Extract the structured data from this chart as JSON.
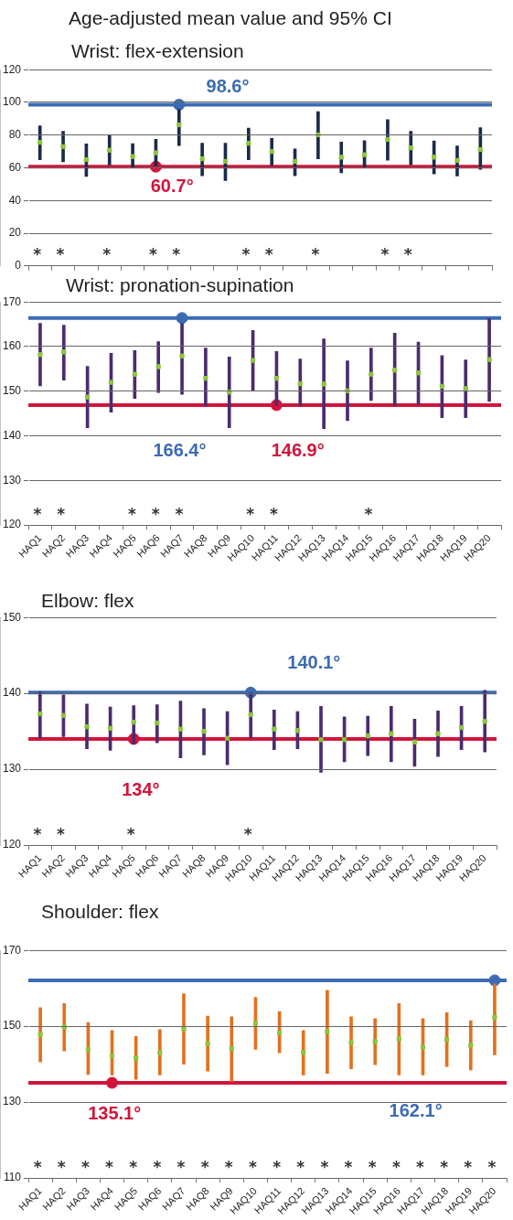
{
  "chart_data": [
    {
      "type": "bar",
      "title": "Age-adjusted mean value and 95% CI",
      "subtitle": "Wrist: flex-extension",
      "categories": [
        "HAQ1",
        "HAQ2",
        "HAQ3",
        "HAQ4",
        "HAQ5",
        "HAQ6",
        "HAQ7",
        "HAQ8",
        "HAQ9",
        "HAQ10",
        "HAQ11",
        "HAQ12",
        "HAQ13",
        "HAQ14",
        "HAQ15",
        "HAQ16",
        "HAQ17",
        "HAQ18",
        "HAQ19",
        "HAQ20"
      ],
      "series": [
        {
          "color": "#1c2a4a",
          "base": [
            65,
            63.7,
            54.8,
            61.7,
            60.1,
            61,
            73.6,
            55.2,
            52.2,
            65,
            61.5,
            55.2,
            65.5,
            57,
            60.1,
            64.7,
            61.9,
            56.3,
            55,
            59
          ],
          "values": [
            20.7,
            18.6,
            19.8,
            18.1,
            14.7,
            16.4,
            22.2,
            19.8,
            22.8,
            19.3,
            16.5,
            16.4,
            28.9,
            18.8,
            16.5,
            24.8,
            20.4,
            20.1,
            18.4,
            25.5
          ]
        },
        {
          "type": "scatter",
          "marker": "square",
          "color": "#8cc63e",
          "values": [
            75.6,
            73,
            65,
            70.8,
            66.9,
            69.2,
            86.3,
            65.5,
            64,
            75,
            70,
            64,
            80.2,
            66.5,
            68,
            77.4,
            72.2,
            66.5,
            64.5,
            71.2
          ]
        },
        {
          "type": "scatter",
          "marker": "circle",
          "color": "#3c6bb4",
          "x": [
            "HAQ7"
          ],
          "values": [
            98.6
          ]
        },
        {
          "type": "scatter",
          "marker": "circle",
          "color": "#d2143a",
          "x": [
            "HAQ6"
          ],
          "values": [
            60.7
          ]
        }
      ],
      "ylim": [
        0,
        120
      ],
      "yticks": [
        0,
        20,
        40,
        60,
        80,
        100,
        120
      ],
      "grid": "y",
      "tick_labels": "y",
      "ref_lines": [
        {
          "axis": "y",
          "value": 98.6,
          "label": "98.6°",
          "color": "#3c6bb4"
        },
        {
          "axis": "y",
          "value": 60.7,
          "label": "60.7°",
          "color": "#d2143a"
        }
      ],
      "annotations": [
        "*",
        "*",
        "*",
        "*",
        "*",
        "*",
        "*",
        "*",
        "*",
        "*"
      ]
    },
    {
      "type": "bar",
      "title": "Wrist: pronation-supination",
      "categories": [
        "HAQ1",
        "HAQ2",
        "HAQ3",
        "HAQ4",
        "HAQ5",
        "HAQ6",
        "HAQ7",
        "HAQ8",
        "HAQ9",
        "HAQ10",
        "HAQ11",
        "HAQ12",
        "HAQ13",
        "HAQ14",
        "HAQ15",
        "HAQ16",
        "HAQ17",
        "HAQ18",
        "HAQ19",
        "HAQ20"
      ],
      "series": [
        {
          "color": "#4a2c6e",
          "base": [
            151.2,
            152.5,
            141.8,
            145.3,
            148.4,
            149.7,
            149.3,
            146.8,
            141.8,
            150,
            146.8,
            146.8,
            141.6,
            143.4,
            147.9,
            146.8,
            147,
            144.1,
            144.1,
            147.7
          ],
          "values": [
            14,
            12.3,
            13.8,
            13.2,
            10.7,
            11.4,
            15.9,
            12.9,
            15.9,
            13.6,
            12.1,
            10.4,
            20.1,
            13.4,
            11.8,
            16.2,
            14,
            13.9,
            12.9,
            18.6
          ]
        },
        {
          "type": "scatter",
          "marker": "square",
          "color": "#8cc63e",
          "values": [
            158.2,
            158.8,
            148.7,
            152,
            153.8,
            155.5,
            157.9,
            152.9,
            149.8,
            156.9,
            152.9,
            151.7,
            151.6,
            150.1,
            153.8,
            154.7,
            154.1,
            151.1,
            150.6,
            157.1
          ]
        },
        {
          "type": "scatter",
          "marker": "circle",
          "color": "#3c6bb4",
          "x": [
            "HAQ7"
          ],
          "values": [
            166.4
          ]
        },
        {
          "type": "scatter",
          "marker": "circle",
          "color": "#d2143a",
          "x": [
            "HAQ11"
          ],
          "values": [
            146.9
          ]
        }
      ],
      "ylim": [
        120,
        170
      ],
      "yticks": [
        120,
        130,
        140,
        150,
        160,
        170
      ],
      "grid": "y",
      "ref_lines": [
        {
          "axis": "y",
          "value": 166.4,
          "label": "166.4°",
          "color": "#3c6bb4"
        },
        {
          "axis": "y",
          "value": 146.9,
          "label": "146.9°",
          "color": "#d2143a"
        }
      ],
      "annotations": [
        "*",
        "*",
        "*",
        "*",
        "*",
        "*",
        "*",
        "*"
      ]
    },
    {
      "type": "bar",
      "title": "Elbow: flex",
      "categories": [
        "HAQ1",
        "HAQ2",
        "HAQ3",
        "HAQ4",
        "HAQ5",
        "HAQ6",
        "HAQ7",
        "HAQ8",
        "HAQ9",
        "HAQ10",
        "HAQ11",
        "HAQ12",
        "HAQ13",
        "HAQ14",
        "HAQ15",
        "HAQ16",
        "HAQ17",
        "HAQ18",
        "HAQ19",
        "HAQ20"
      ],
      "series": [
        {
          "color": "#4a2c6e",
          "base": [
            134.1,
            134.3,
            132.7,
            132.5,
            133.3,
            133.5,
            131.5,
            131.9,
            130.6,
            134.1,
            132.6,
            132.7,
            129.6,
            131,
            131.8,
            131,
            130.4,
            131.7,
            132.6,
            132.3
          ],
          "values": [
            6.1,
            5.5,
            5.9,
            5.7,
            5.1,
            5,
            7.5,
            6.1,
            7,
            6,
            5.2,
            4.9,
            8.7,
            5.9,
            5.2,
            7.3,
            6.2,
            6,
            5.7,
            8.1
          ]
        },
        {
          "type": "scatter",
          "marker": "square",
          "color": "#8cc63e",
          "values": [
            137.3,
            137.1,
            135.6,
            135.4,
            136.2,
            136.1,
            135.3,
            135,
            134.1,
            137.2,
            135.3,
            135.1,
            133.9,
            133.9,
            134.4,
            134.7,
            133.6,
            134.7,
            135.5,
            136.3
          ]
        },
        {
          "type": "scatter",
          "marker": "circle",
          "color": "#3c6bb4",
          "x": [
            "HAQ10"
          ],
          "values": [
            140.1
          ]
        },
        {
          "type": "scatter",
          "marker": "circle",
          "color": "#d2143a",
          "x": [
            "HAQ5"
          ],
          "values": [
            134
          ]
        }
      ],
      "ylim": [
        120,
        150
      ],
      "yticks": [
        120,
        130,
        140,
        150
      ],
      "grid": "y",
      "ref_lines": [
        {
          "axis": "y",
          "value": 140.1,
          "label": "140.1°",
          "color": "#3c6bb4"
        },
        {
          "axis": "y",
          "value": 134,
          "label": "134°",
          "color": "#d2143a"
        }
      ],
      "annotations": [
        "*",
        "*",
        "*",
        "*"
      ]
    },
    {
      "type": "bar",
      "title": "Shoulder: flex",
      "categories": [
        "HAQ1",
        "HAQ2",
        "HAQ3",
        "HAQ4",
        "HAQ5",
        "HAQ6",
        "HAQ7",
        "HAQ8",
        "HAQ9",
        "HAQ10",
        "HAQ11",
        "HAQ12",
        "HAQ13",
        "HAQ14",
        "HAQ15",
        "HAQ16",
        "HAQ17",
        "HAQ18",
        "HAQ19",
        "HAQ20"
      ],
      "series": [
        {
          "color": "#e2711d",
          "base": [
            140.6,
            143.5,
            137.3,
            137.2,
            136,
            137.2,
            140,
            138.2,
            135.5,
            143.9,
            143,
            137.2,
            137.6,
            138.8,
            139.9,
            137.2,
            137.2,
            139.4,
            138.5,
            142.5
          ],
          "values": [
            14.3,
            12.5,
            13.7,
            11.7,
            11.3,
            11.9,
            18.6,
            14.5,
            17,
            13.7,
            10.9,
            11.7,
            21.9,
            13.7,
            12.1,
            18.8,
            14.8,
            14.2,
            13,
            18.7
          ]
        },
        {
          "type": "scatter",
          "marker": "square",
          "color": "#8cc63e",
          "values": [
            147.8,
            149.8,
            143.9,
            142.2,
            141.6,
            143,
            149.3,
            145.5,
            144.1,
            150.8,
            148.3,
            143.1,
            148.6,
            145.7,
            146,
            146.7,
            144.5,
            146.5,
            145,
            152.4
          ]
        },
        {
          "type": "scatter",
          "marker": "circle",
          "color": "#3c6bb4",
          "x": [
            "HAQ20"
          ],
          "values": [
            162.1
          ]
        },
        {
          "type": "scatter",
          "marker": "circle",
          "color": "#d2143a",
          "x": [
            "HAQ4"
          ],
          "values": [
            135.1
          ]
        }
      ],
      "ylim": [
        110,
        170
      ],
      "yticks": [
        110,
        130,
        150,
        170
      ],
      "grid": "y",
      "ref_lines": [
        {
          "axis": "y",
          "value": 162.1,
          "label": "162.1°",
          "color": "#3c6bb4"
        },
        {
          "axis": "y",
          "value": 135.1,
          "label": "135.1°",
          "color": "#d2143a"
        }
      ],
      "annotations": [
        "*",
        "*",
        "*",
        "*",
        "*",
        "*",
        "*",
        "*",
        "*",
        "*",
        "*",
        "*",
        "*",
        "*",
        "*",
        "*",
        "*",
        "*",
        "*",
        "*"
      ]
    }
  ]
}
